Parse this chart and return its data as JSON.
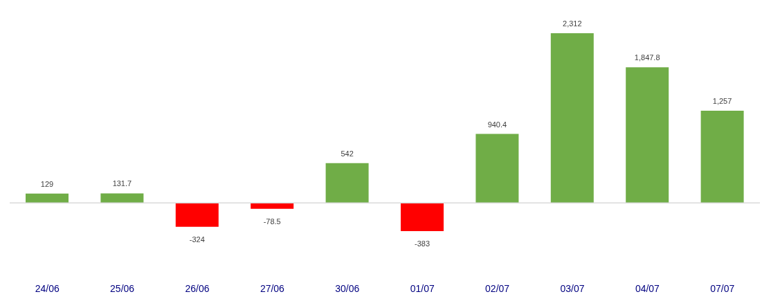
{
  "chart_data": {
    "type": "bar",
    "categories": [
      "24/06",
      "25/06",
      "26/06",
      "27/06",
      "30/06",
      "01/07",
      "02/07",
      "03/07",
      "04/07",
      "07/07"
    ],
    "values": [
      129,
      131.7,
      -324,
      -78.5,
      542,
      -383,
      940.4,
      2312,
      1847.8,
      1257
    ],
    "colors": [
      "#70ad47",
      "#70ad47",
      "#ff0000",
      "#ff0000",
      "#70ad47",
      "#ff0000",
      "#70ad47",
      "#70ad47",
      "#70ad47",
      "#70ad47"
    ],
    "value_labels": [
      "129",
      "131.7",
      "-324",
      "-78.5",
      "542",
      "-383",
      "940.4",
      "2,312",
      "1,847.8",
      "1,257"
    ],
    "tick_labels": "x"
  }
}
